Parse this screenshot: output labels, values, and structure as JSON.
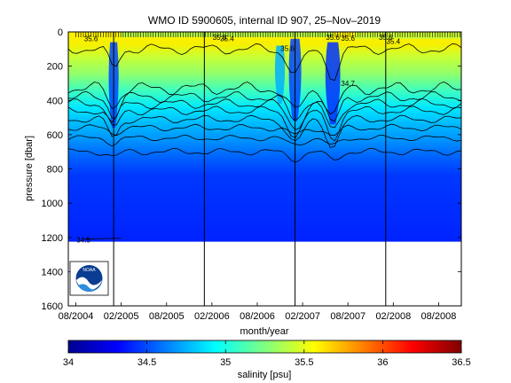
{
  "chart_data": [
    {
      "type": "heatmap",
      "title": "WMO ID 5900605, internal ID 907, 25–Nov–2019",
      "xlabel": "month/year",
      "ylabel": "pressure [dbar]",
      "x_tick_labels": [
        "08/2004",
        "02/2005",
        "08/2005",
        "02/2006",
        "08/2006",
        "02/2007",
        "08/2007",
        "02/2008",
        "08/2008"
      ],
      "x_ticks": [
        "2004-08",
        "2005-02",
        "2005-08",
        "2006-02",
        "2006-08",
        "2007-02",
        "2007-08",
        "2008-02",
        "2008-08"
      ],
      "xlim": [
        "2004-07",
        "2008-11"
      ],
      "y_ticks": [
        0,
        200,
        400,
        600,
        800,
        1000,
        1200,
        1400,
        1600
      ],
      "ylim": [
        0,
        1600
      ],
      "y_reversed": true,
      "data_max_pressure": 1225,
      "year_boundaries": [
        "2005-01",
        "2006-01",
        "2007-01",
        "2008-01"
      ],
      "salinity_by_pressure": [
        {
          "pressure": 0,
          "salinity": 35.6
        },
        {
          "pressure": 100,
          "salinity": 35.4
        },
        {
          "pressure": 250,
          "salinity": 35.1
        },
        {
          "pressure": 350,
          "salinity": 35.0
        },
        {
          "pressure": 420,
          "salinity": 34.9
        },
        {
          "pressure": 480,
          "salinity": 34.85
        },
        {
          "pressure": 550,
          "salinity": 34.8
        },
        {
          "pressure": 620,
          "salinity": 34.75
        },
        {
          "pressure": 700,
          "salinity": 34.7
        },
        {
          "pressure": 800,
          "salinity": 34.6
        },
        {
          "pressure": 1225,
          "salinity": 34.55
        }
      ],
      "contour_labels": [
        {
          "text": "35.6",
          "time": "2004-10",
          "pressure": 40
        },
        {
          "text": "35.6",
          "time": "2006-03",
          "pressure": 30
        },
        {
          "text": "35.4",
          "time": "2006-04",
          "pressure": 40
        },
        {
          "text": "35.6",
          "time": "2006-12",
          "pressure": 95
        },
        {
          "text": "35.6",
          "time": "2007-06",
          "pressure": 30
        },
        {
          "text": "35.6",
          "time": "2007-08",
          "pressure": 35
        },
        {
          "text": "35.6",
          "time": "2008-01",
          "pressure": 30
        },
        {
          "text": "35.4",
          "time": "2008-02",
          "pressure": 55
        },
        {
          "text": "34.7",
          "time": "2007-08",
          "pressure": 300
        },
        {
          "text": "34.5",
          "time": "2004-09",
          "pressure": 1215
        }
      ]
    },
    {
      "type": "colorbar",
      "xlabel": "salinity [psu]",
      "xlim": [
        34,
        36.5
      ],
      "ticks": [
        "34",
        "34.5",
        "35",
        "35.5",
        "36",
        "36.5"
      ],
      "colormap": "jet"
    }
  ],
  "logo": {
    "text": "NOAA"
  }
}
